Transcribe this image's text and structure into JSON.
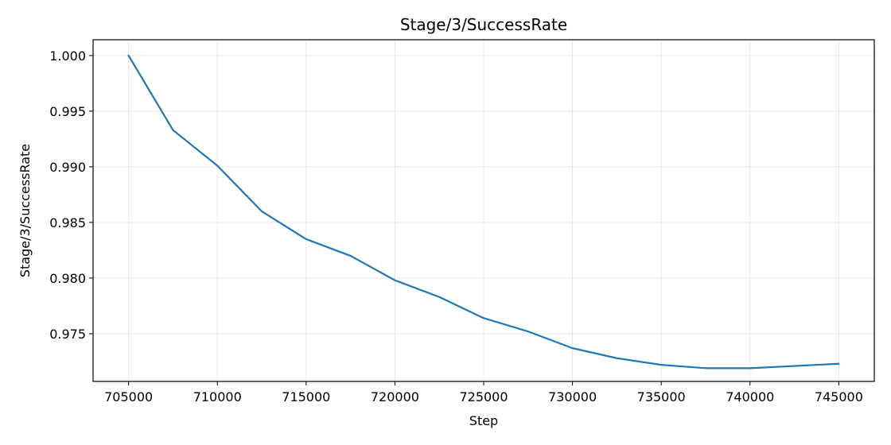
{
  "chart_data": {
    "type": "line",
    "title": "Stage/3/SuccessRate",
    "xlabel": "Step",
    "ylabel": "Stage/3/SuccessRate",
    "xlim": [
      703000,
      747000
    ],
    "ylim": [
      0.97071,
      1.00142
    ],
    "grid": true,
    "legend": "none",
    "x_ticks": [
      705000,
      710000,
      715000,
      720000,
      725000,
      730000,
      735000,
      740000,
      745000
    ],
    "x_tick_labels": [
      "705000",
      "710000",
      "715000",
      "720000",
      "725000",
      "730000",
      "735000",
      "740000",
      "745000"
    ],
    "y_ticks": [
      0.975,
      0.98,
      0.985,
      0.99,
      0.995,
      1.0
    ],
    "y_tick_labels": [
      "0.975",
      "0.980",
      "0.985",
      "0.990",
      "0.995",
      "1.000"
    ],
    "series": [
      {
        "name": "Stage/3/SuccessRate",
        "color": "#1f77b4",
        "x": [
          705000,
          707500,
          710000,
          712500,
          715000,
          717500,
          720000,
          722500,
          725000,
          727500,
          730000,
          732500,
          735000,
          737500,
          740000,
          742500,
          745000
        ],
        "y": [
          1.0,
          0.9933,
          0.9901,
          0.986,
          0.9835,
          0.982,
          0.9798,
          0.9783,
          0.9764,
          0.9752,
          0.9737,
          0.9728,
          0.9722,
          0.9719,
          0.9719,
          0.9721,
          0.9723
        ]
      }
    ]
  }
}
